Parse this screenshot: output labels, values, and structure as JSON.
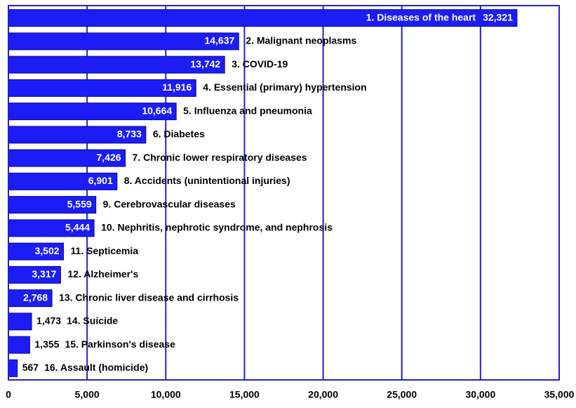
{
  "chart_data": {
    "type": "hbar",
    "categories": [
      "1.  Diseases of the heart",
      "2.  Malignant neoplasms",
      "3. COVID-19",
      "4.  Essential (primary) hypertension",
      "5. Influenza and pneumonia",
      "6. Diabetes",
      "7.  Chronic lower respiratory diseases",
      "8. Accidents (unintentional injuries)",
      "9.  Cerebrovascular diseases",
      "10. Nephritis, nephrotic syndrome, and nephrosis",
      "11. Septicemia",
      "12. Alzheimer's",
      "13. Chronic liver disease and cirrhosis",
      "14.  Suicide",
      "15.  Parkinson's disease",
      "16.  Assault  (homicide)"
    ],
    "values": [
      32321,
      14637,
      13742,
      11916,
      10664,
      8733,
      7426,
      6901,
      5559,
      5444,
      3502,
      3317,
      2768,
      1473,
      1355,
      567
    ],
    "value_labels": [
      "32,321",
      "14,637",
      "13,742",
      "11,916",
      "10,664",
      "8,733",
      "7,426",
      "6,901",
      "5,559",
      "5,444",
      "3,502",
      "3,317",
      "2,768",
      "1,473",
      "1,355",
      "567"
    ],
    "color": "#1c1cf5",
    "xlim": [
      0,
      35000
    ],
    "xticks": [
      0,
      {
        "value": 5000,
        "label": "5,000"
      },
      {
        "value": 10000,
        "label": "10,000"
      },
      {
        "value": 15000,
        "label": "15,000"
      },
      {
        "value": 20000,
        "label": "20,000"
      },
      {
        "value": 25000,
        "label": "25,000"
      },
      {
        "value": 30000,
        "label": "30,000"
      },
      {
        "value": 35000,
        "label": "35,000"
      }
    ],
    "grid": true
  }
}
